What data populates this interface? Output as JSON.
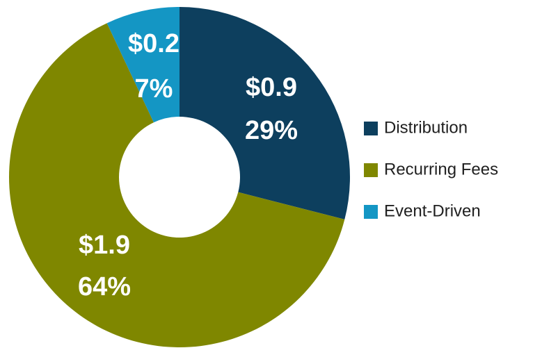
{
  "chart_data": {
    "type": "donut",
    "categories": [
      "Distribution",
      "Recurring Fees",
      "Event-Driven"
    ],
    "values": [
      29,
      64,
      7
    ],
    "value_labels": [
      "29%",
      "64%",
      "7%"
    ],
    "amount_labels": [
      "$0.9",
      "$1.9",
      "$0.2"
    ],
    "colors": [
      "#0d3f5e",
      "#7f8700",
      "#1496c4"
    ],
    "legend": "right"
  }
}
